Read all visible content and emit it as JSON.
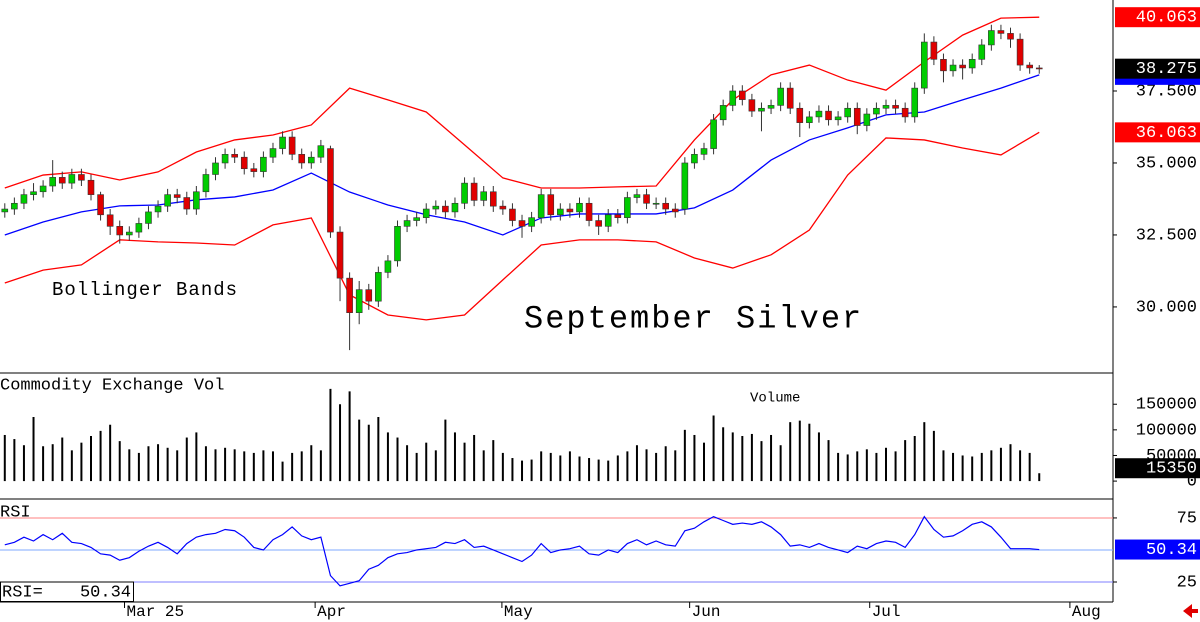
{
  "chart_data": [
    {
      "type": "candlestick",
      "title": "September Silver",
      "annotation": "Bollinger Bands",
      "x": [
        0,
        1,
        2,
        3,
        4,
        5,
        6,
        7,
        8,
        9,
        10,
        11,
        12,
        13,
        14,
        15,
        16,
        17,
        18,
        19,
        20,
        21,
        22,
        23,
        24,
        25,
        26,
        27,
        28,
        29,
        30,
        31,
        32,
        33,
        34,
        35,
        36,
        37,
        38,
        39,
        40,
        41,
        42,
        43,
        44,
        45,
        46,
        47,
        48,
        49,
        50,
        51,
        52,
        53,
        54,
        55,
        56,
        57,
        58,
        59,
        60,
        61,
        62,
        63,
        64,
        65,
        66,
        67,
        68,
        69,
        70,
        71,
        72,
        73,
        74,
        75,
        76,
        77,
        78,
        79,
        80,
        81,
        82,
        83,
        84,
        85,
        86,
        87,
        88,
        89,
        90,
        91,
        92,
        93,
        94,
        95,
        96,
        97,
        98,
        99,
        100,
        101,
        102,
        103,
        104,
        105,
        106,
        107,
        108
      ],
      "open": [
        33.3,
        33.4,
        33.6,
        33.9,
        34.0,
        34.2,
        34.5,
        34.3,
        34.6,
        34.4,
        33.9,
        33.2,
        32.8,
        32.5,
        32.6,
        32.9,
        33.3,
        33.5,
        33.9,
        33.8,
        33.4,
        34.0,
        34.6,
        35.0,
        35.3,
        35.2,
        34.8,
        34.7,
        35.2,
        35.5,
        35.9,
        35.3,
        35.0,
        35.2,
        35.5,
        32.6,
        31.0,
        29.8,
        30.6,
        30.2,
        31.2,
        31.6,
        32.8,
        33.0,
        33.1,
        33.4,
        33.5,
        33.3,
        33.6,
        34.3,
        33.7,
        34.0,
        33.5,
        33.4,
        33.0,
        32.8,
        33.1,
        33.9,
        33.2,
        33.4,
        33.3,
        33.6,
        33.0,
        32.8,
        33.2,
        33.1,
        33.8,
        33.9,
        33.6,
        33.6,
        33.4,
        33.4,
        35.0,
        35.3,
        35.5,
        36.5,
        37.0,
        37.5,
        37.2,
        36.8,
        36.9,
        37.0,
        37.6,
        36.9,
        36.4,
        36.6,
        36.8,
        36.5,
        36.6,
        36.9,
        36.3,
        36.7,
        36.9,
        37.0,
        36.9,
        36.6,
        37.6,
        39.2,
        38.6,
        38.2,
        38.4,
        38.3,
        38.6,
        39.1,
        39.6,
        39.5,
        39.3,
        38.4,
        38.3
      ],
      "high": [
        33.6,
        33.8,
        34.1,
        34.3,
        34.4,
        35.1,
        34.7,
        34.8,
        34.8,
        34.6,
        34.0,
        33.4,
        33.0,
        32.8,
        33.1,
        33.5,
        33.7,
        34.1,
        34.1,
        34.0,
        34.2,
        34.8,
        35.2,
        35.5,
        35.5,
        35.4,
        35.0,
        35.4,
        35.7,
        36.1,
        36.1,
        35.5,
        35.4,
        35.8,
        35.6,
        32.8,
        31.2,
        30.9,
        30.8,
        31.4,
        31.8,
        33.0,
        33.2,
        33.3,
        33.6,
        33.7,
        33.7,
        33.8,
        34.5,
        34.5,
        34.2,
        34.2,
        33.7,
        33.6,
        33.2,
        33.3,
        34.1,
        34.1,
        33.6,
        33.6,
        33.8,
        33.8,
        33.2,
        33.4,
        33.4,
        34.0,
        34.1,
        34.1,
        33.8,
        33.8,
        33.6,
        35.2,
        35.5,
        35.7,
        36.7,
        37.2,
        37.7,
        37.7,
        37.4,
        37.1,
        37.2,
        37.8,
        37.8,
        37.1,
        36.8,
        37.0,
        37.0,
        36.8,
        37.1,
        37.1,
        36.9,
        37.1,
        37.2,
        37.2,
        37.1,
        37.8,
        39.5,
        39.4,
        38.8,
        38.6,
        38.6,
        38.8,
        39.3,
        39.8,
        39.8,
        39.7,
        39.5,
        38.5,
        38.4
      ],
      "low": [
        33.1,
        33.2,
        33.4,
        33.7,
        33.8,
        34.0,
        34.1,
        34.1,
        34.2,
        33.7,
        33.0,
        32.5,
        32.2,
        32.3,
        32.4,
        32.7,
        33.1,
        33.3,
        33.6,
        33.2,
        33.2,
        33.8,
        34.4,
        34.8,
        35.0,
        34.6,
        34.5,
        34.5,
        35.0,
        35.3,
        35.1,
        34.8,
        34.8,
        35.0,
        32.4,
        30.2,
        28.5,
        29.4,
        29.9,
        30.0,
        31.0,
        31.4,
        32.6,
        32.8,
        32.9,
        33.2,
        33.1,
        33.1,
        33.4,
        33.5,
        33.5,
        33.3,
        33.2,
        32.8,
        32.4,
        32.6,
        32.9,
        33.0,
        33.0,
        33.1,
        33.1,
        32.8,
        32.5,
        32.6,
        32.9,
        32.9,
        33.6,
        33.4,
        33.4,
        33.2,
        33.1,
        33.2,
        34.8,
        35.1,
        35.3,
        36.3,
        36.8,
        37.0,
        36.6,
        36.1,
        36.7,
        36.8,
        36.7,
        35.9,
        36.2,
        36.4,
        36.3,
        36.3,
        36.4,
        36.0,
        36.1,
        36.5,
        36.7,
        36.7,
        36.4,
        36.4,
        37.4,
        38.4,
        37.8,
        38.0,
        37.9,
        38.1,
        38.4,
        38.9,
        39.3,
        39.0,
        38.2,
        38.1,
        38.1
      ],
      "close": [
        33.4,
        33.6,
        33.9,
        34.0,
        34.2,
        34.5,
        34.3,
        34.6,
        34.4,
        33.9,
        33.2,
        32.8,
        32.5,
        32.6,
        32.9,
        33.3,
        33.5,
        33.9,
        33.8,
        33.4,
        34.0,
        34.6,
        35.0,
        35.3,
        35.2,
        34.8,
        34.7,
        35.2,
        35.5,
        35.9,
        35.3,
        35.0,
        35.2,
        35.6,
        32.6,
        31.0,
        29.8,
        30.6,
        30.2,
        31.2,
        31.6,
        32.8,
        33.0,
        33.1,
        33.4,
        33.5,
        33.3,
        33.6,
        34.3,
        33.7,
        34.0,
        33.5,
        33.4,
        33.0,
        32.8,
        33.1,
        33.9,
        33.2,
        33.4,
        33.3,
        33.6,
        33.0,
        32.8,
        33.2,
        33.1,
        33.8,
        33.9,
        33.6,
        33.6,
        33.4,
        33.3,
        35.0,
        35.3,
        35.5,
        36.5,
        37.0,
        37.5,
        37.2,
        36.8,
        36.9,
        37.0,
        37.6,
        36.9,
        36.4,
        36.6,
        36.8,
        36.5,
        36.6,
        36.9,
        36.3,
        36.7,
        36.9,
        37.0,
        36.9,
        36.6,
        37.6,
        39.2,
        38.6,
        38.2,
        38.4,
        38.3,
        38.6,
        39.1,
        39.6,
        39.5,
        39.3,
        38.4,
        38.3,
        38.275
      ],
      "up_color": "#00cc00",
      "down_color": "#e00000",
      "last_color": "#000000",
      "bands": {
        "x": [
          0,
          4,
          8,
          12,
          16,
          20,
          24,
          28,
          32,
          36,
          40,
          44,
          48,
          52,
          56,
          60,
          64,
          68,
          72,
          76,
          80,
          84,
          88,
          92,
          96,
          100,
          104,
          108
        ],
        "upper": [
          34.13,
          34.58,
          34.69,
          34.41,
          34.69,
          35.38,
          35.8,
          35.97,
          36.32,
          37.6,
          37.19,
          36.77,
          35.63,
          34.48,
          34.13,
          34.13,
          34.17,
          34.2,
          35.8,
          37.19,
          38.06,
          38.4,
          37.88,
          37.53,
          38.51,
          39.44,
          40.03,
          40.063
        ],
        "middle": [
          32.5,
          32.95,
          33.3,
          33.51,
          33.54,
          33.72,
          33.82,
          34.06,
          34.65,
          33.99,
          33.54,
          33.2,
          32.95,
          32.5,
          33.09,
          33.23,
          33.23,
          33.23,
          33.44,
          34.06,
          35.1,
          35.8,
          36.22,
          36.67,
          36.77,
          37.19,
          37.6,
          38.06
        ],
        "lower": [
          30.83,
          31.28,
          31.46,
          32.33,
          32.26,
          32.22,
          32.15,
          32.85,
          33.09,
          30.42,
          29.72,
          29.55,
          29.72,
          30.94,
          32.15,
          32.33,
          32.33,
          32.26,
          31.7,
          31.35,
          31.81,
          32.67,
          34.58,
          35.87,
          35.8,
          35.52,
          35.28,
          36.063
        ],
        "band_color": "#ff0000",
        "middle_color": "#0000ff"
      },
      "xlim": [
        -0.5,
        115.7
      ],
      "ylim": [
        27.74,
        40.66
      ],
      "yticks": [
        {
          "value": 30,
          "label": "30.000"
        },
        {
          "value": 32.5,
          "label": "32.500"
        },
        {
          "value": 35,
          "label": "35.000"
        },
        {
          "value": 37.5,
          "label": "37.500"
        }
      ],
      "xticks": [
        {
          "value": 12.5,
          "label": "Mar 25"
        },
        {
          "value": 32.4,
          "label": "Apr"
        },
        {
          "value": 51.9,
          "label": "May"
        },
        {
          "value": 71.5,
          "label": "Jun"
        },
        {
          "value": 90.3,
          "label": "Jul"
        },
        {
          "value": 111.2,
          "label": "Aug"
        }
      ]
    },
    {
      "type": "bar",
      "title": "Commodity Exchange Vol",
      "annotation": "Volume",
      "values": [
        90000,
        82000,
        70000,
        125000,
        68000,
        72000,
        85000,
        60000,
        75000,
        88000,
        98000,
        110000,
        78000,
        62000,
        55000,
        68000,
        72000,
        65000,
        60000,
        85000,
        95000,
        68000,
        62000,
        65000,
        62000,
        58000,
        55000,
        60000,
        58000,
        38000,
        55000,
        58000,
        70000,
        60000,
        180000,
        150000,
        175000,
        120000,
        110000,
        125000,
        95000,
        85000,
        70000,
        55000,
        75000,
        60000,
        120000,
        95000,
        75000,
        90000,
        60000,
        80000,
        55000,
        45000,
        40000,
        42000,
        58000,
        55000,
        50000,
        58000,
        48000,
        45000,
        42000,
        40000,
        50000,
        58000,
        70000,
        62000,
        55000,
        68000,
        60000,
        100000,
        90000,
        75000,
        128000,
        105000,
        95000,
        88000,
        92000,
        78000,
        90000,
        70000,
        115000,
        118000,
        112000,
        95000,
        80000,
        55000,
        52000,
        58000,
        62000,
        55000,
        65000,
        58000,
        80000,
        88000,
        115000,
        98000,
        60000,
        55000,
        50000,
        48000,
        55000,
        60000,
        65000,
        72000,
        60000,
        55000,
        15350
      ],
      "color": "#000000",
      "ylim": [
        -33000,
        209000
      ],
      "yticks": [
        0,
        50000,
        100000,
        150000
      ]
    },
    {
      "type": "line",
      "title": "RSI",
      "readout": "RSI=",
      "values": [
        54,
        56,
        60,
        57,
        62,
        58,
        63,
        56,
        55,
        52,
        47,
        46,
        42,
        44,
        49,
        53,
        56,
        52,
        47,
        55,
        60,
        62,
        63,
        66,
        65,
        60,
        52,
        50,
        58,
        62,
        68,
        61,
        58,
        60,
        30,
        22,
        24,
        26,
        35,
        38,
        44,
        47,
        48,
        50,
        51,
        52,
        56,
        55,
        58,
        52,
        53,
        50,
        47,
        44,
        41,
        46,
        55,
        48,
        50,
        51,
        53,
        47,
        46,
        50,
        48,
        55,
        58,
        54,
        57,
        54,
        53,
        65,
        67,
        72,
        76,
        73,
        70,
        71,
        70,
        72,
        68,
        62,
        53,
        54,
        52,
        55,
        52,
        50,
        48,
        53,
        51,
        55,
        57,
        56,
        52,
        62,
        76,
        66,
        60,
        61,
        65,
        70,
        72,
        68,
        60,
        51,
        51,
        51,
        50.34
      ],
      "color": "#0000ff",
      "ylim": [
        9.4,
        89
      ],
      "yticks": [
        25,
        75
      ],
      "grid_colors": [
        "#7f7fff",
        "#ff8080"
      ],
      "reference": 50,
      "reference_color": "#7fa8ff"
    }
  ]
}
